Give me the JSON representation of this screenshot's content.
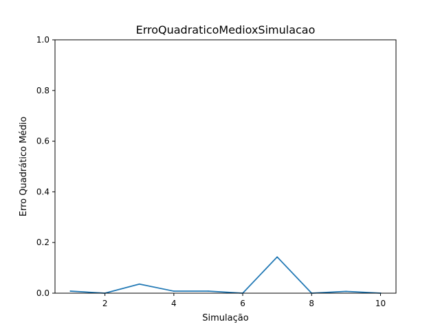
{
  "chart_data": {
    "type": "line",
    "title": "ErroQuadraticoMedioxSimulacao",
    "xlabel": "Simulação",
    "ylabel": "Erro Quadrático Médio",
    "x": [
      1,
      2,
      3,
      4,
      5,
      6,
      7,
      8,
      9,
      10
    ],
    "series": [
      {
        "values": [
          0.008,
          0.0,
          0.036,
          0.008,
          0.008,
          0.0,
          0.143,
          0.0,
          0.007,
          0.0
        ]
      }
    ],
    "xlim": [
      0.55,
      10.45
    ],
    "ylim": [
      0,
      1.0
    ],
    "xticks": [
      2,
      4,
      6,
      8,
      10
    ],
    "xtick_labels": [
      "2",
      "4",
      "6",
      "8",
      "10"
    ],
    "yticks": [
      0.0,
      0.2,
      0.4,
      0.6,
      0.8,
      1.0
    ],
    "ytick_labels": [
      "0.0",
      "0.2",
      "0.4",
      "0.6",
      "0.8",
      "1.0"
    ],
    "grid": false,
    "line_color": "#1f77b4"
  }
}
